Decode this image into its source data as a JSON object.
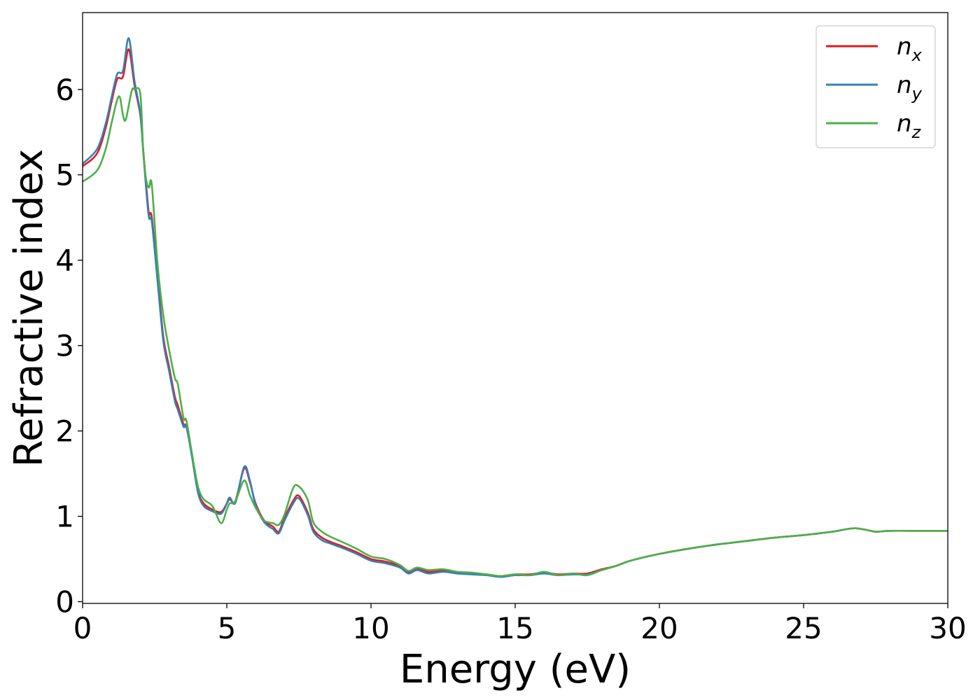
{
  "chart_data": {
    "type": "line",
    "title": "",
    "xlabel": "Energy (eV)",
    "ylabel": "Refractive index",
    "xlim": [
      0,
      30
    ],
    "ylim": [
      -0.02,
      6.9
    ],
    "xticks": [
      0,
      5,
      10,
      15,
      20,
      25,
      30
    ],
    "yticks": [
      0,
      1,
      2,
      3,
      4,
      5,
      6
    ],
    "grid": false,
    "legend_position": "top-right",
    "series": [
      {
        "name": "n_x",
        "label_base": "n",
        "label_sub": "x",
        "color": "#e41a1c",
        "x": [
          0,
          0.5,
          0.8,
          1.0,
          1.2,
          1.4,
          1.6,
          1.8,
          2.0,
          2.1,
          2.2,
          2.3,
          2.4,
          2.6,
          2.8,
          3.0,
          3.2,
          3.3,
          3.5,
          3.6,
          3.8,
          4.0,
          4.2,
          4.5,
          4.8,
          5.0,
          5.1,
          5.3,
          5.6,
          5.8,
          6.0,
          6.3,
          6.6,
          6.8,
          7.0,
          7.3,
          7.5,
          7.8,
          8.0,
          8.3,
          8.6,
          9.0,
          9.5,
          10.0,
          10.5,
          11.0,
          11.3,
          11.6,
          12.0,
          12.5,
          13.0,
          13.5,
          14.0,
          14.5,
          15.0,
          15.5,
          16.0,
          16.5,
          17.0,
          17.5,
          18.0,
          18.5,
          19.0,
          20.0,
          21.0,
          22.0,
          23.0,
          24.0,
          25.0,
          26.0,
          26.5,
          26.8,
          27.2,
          27.5,
          28.0,
          29.0,
          30.0
        ],
        "y": [
          5.1,
          5.25,
          5.55,
          5.85,
          6.12,
          6.15,
          6.47,
          6.05,
          5.7,
          5.3,
          4.9,
          4.55,
          4.5,
          3.8,
          3.1,
          2.75,
          2.4,
          2.3,
          2.08,
          2.05,
          1.7,
          1.3,
          1.15,
          1.08,
          1.05,
          1.15,
          1.2,
          1.18,
          1.56,
          1.4,
          1.15,
          0.95,
          0.88,
          0.82,
          0.98,
          1.18,
          1.24,
          1.05,
          0.85,
          0.75,
          0.7,
          0.65,
          0.58,
          0.5,
          0.47,
          0.42,
          0.35,
          0.38,
          0.35,
          0.36,
          0.34,
          0.33,
          0.32,
          0.3,
          0.32,
          0.32,
          0.34,
          0.32,
          0.33,
          0.33,
          0.38,
          0.42,
          0.48,
          0.56,
          0.62,
          0.67,
          0.71,
          0.75,
          0.78,
          0.82,
          0.85,
          0.86,
          0.84,
          0.82,
          0.83,
          0.83,
          0.83
        ]
      },
      {
        "name": "n_y",
        "label_base": "n",
        "label_sub": "y",
        "color": "#377eb8",
        "x": [
          0,
          0.5,
          0.8,
          1.0,
          1.2,
          1.4,
          1.6,
          1.8,
          2.0,
          2.1,
          2.2,
          2.3,
          2.4,
          2.6,
          2.8,
          3.0,
          3.2,
          3.3,
          3.5,
          3.6,
          3.8,
          4.0,
          4.2,
          4.5,
          4.8,
          5.0,
          5.1,
          5.3,
          5.6,
          5.8,
          6.0,
          6.3,
          6.6,
          6.8,
          7.0,
          7.3,
          7.5,
          7.8,
          8.0,
          8.3,
          8.6,
          9.0,
          9.5,
          10.0,
          10.5,
          11.0,
          11.3,
          11.6,
          12.0,
          12.5,
          13.0,
          13.5,
          14.0,
          14.5,
          15.0,
          15.5,
          16.0,
          16.5,
          17.0,
          17.5,
          18.0,
          18.5,
          19.0,
          20.0,
          21.0,
          22.0,
          23.0,
          24.0,
          25.0,
          26.0,
          26.5,
          26.8,
          27.2,
          27.5,
          28.0,
          29.0,
          30.0
        ],
        "y": [
          5.13,
          5.3,
          5.6,
          5.9,
          6.18,
          6.22,
          6.6,
          6.1,
          5.72,
          5.28,
          4.85,
          4.5,
          4.45,
          3.75,
          3.05,
          2.7,
          2.35,
          2.25,
          2.05,
          2.05,
          1.68,
          1.28,
          1.12,
          1.06,
          1.03,
          1.15,
          1.22,
          1.16,
          1.58,
          1.42,
          1.13,
          0.93,
          0.85,
          0.8,
          0.95,
          1.15,
          1.21,
          1.02,
          0.82,
          0.72,
          0.68,
          0.63,
          0.56,
          0.48,
          0.45,
          0.4,
          0.33,
          0.37,
          0.33,
          0.35,
          0.33,
          0.32,
          0.31,
          0.29,
          0.31,
          0.31,
          0.33,
          0.31,
          0.32,
          0.32,
          0.37,
          0.42,
          0.48,
          0.56,
          0.62,
          0.67,
          0.71,
          0.75,
          0.78,
          0.82,
          0.85,
          0.86,
          0.84,
          0.82,
          0.83,
          0.83,
          0.83
        ]
      },
      {
        "name": "n_z",
        "label_base": "n",
        "label_sub": "z",
        "color": "#4daf4a",
        "x": [
          0,
          0.5,
          0.8,
          1.0,
          1.2,
          1.3,
          1.4,
          1.5,
          1.7,
          1.8,
          2.0,
          2.1,
          2.2,
          2.3,
          2.4,
          2.6,
          2.8,
          3.0,
          3.2,
          3.3,
          3.5,
          3.6,
          3.8,
          4.0,
          4.2,
          4.5,
          4.8,
          5.0,
          5.1,
          5.3,
          5.6,
          5.8,
          6.0,
          6.3,
          6.6,
          6.8,
          7.0,
          7.3,
          7.5,
          7.8,
          8.0,
          8.3,
          8.6,
          9.0,
          9.5,
          10.0,
          10.5,
          11.0,
          11.3,
          11.6,
          12.0,
          12.5,
          13.0,
          13.5,
          14.0,
          14.5,
          15.0,
          15.5,
          16.0,
          16.5,
          17.0,
          17.5,
          18.0,
          18.5,
          19.0,
          20.0,
          21.0,
          22.0,
          23.0,
          24.0,
          25.0,
          26.0,
          26.5,
          26.8,
          27.2,
          27.5,
          28.0,
          29.0,
          30.0
        ],
        "y": [
          4.92,
          5.05,
          5.3,
          5.6,
          5.88,
          5.9,
          5.7,
          5.65,
          5.98,
          6.0,
          5.95,
          5.3,
          4.95,
          4.85,
          4.88,
          3.95,
          3.35,
          2.95,
          2.62,
          2.55,
          2.15,
          2.12,
          1.72,
          1.35,
          1.2,
          1.12,
          0.92,
          1.08,
          1.15,
          1.18,
          1.42,
          1.25,
          1.1,
          0.95,
          0.92,
          0.9,
          1.02,
          1.33,
          1.35,
          1.2,
          0.93,
          0.82,
          0.76,
          0.7,
          0.62,
          0.53,
          0.5,
          0.43,
          0.36,
          0.4,
          0.37,
          0.38,
          0.35,
          0.34,
          0.32,
          0.3,
          0.32,
          0.31,
          0.35,
          0.31,
          0.33,
          0.31,
          0.37,
          0.42,
          0.48,
          0.56,
          0.62,
          0.67,
          0.71,
          0.75,
          0.78,
          0.82,
          0.85,
          0.86,
          0.84,
          0.82,
          0.83,
          0.83,
          0.83
        ]
      }
    ]
  }
}
